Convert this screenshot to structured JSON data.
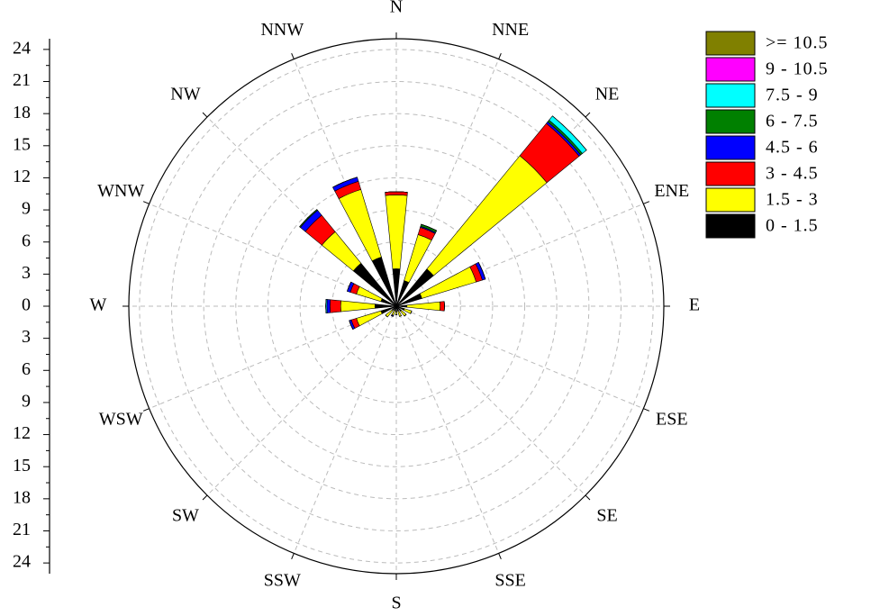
{
  "chart_data": {
    "type": "windrose",
    "categories": [
      "N",
      "NNE",
      "NE",
      "ENE",
      "E",
      "ESE",
      "SE",
      "SSE",
      "S",
      "SSW",
      "SW",
      "WSW",
      "W",
      "WNW",
      "NW",
      "NNW"
    ],
    "rlim": [
      0,
      25
    ],
    "rticks": [
      0,
      3,
      6,
      9,
      12,
      15,
      18,
      21,
      24
    ],
    "grid": true,
    "legend": "right",
    "series": [
      {
        "name": "0 - 1.5",
        "color": "#000000",
        "values": [
          3.5,
          2.5,
          4.5,
          2.5,
          1.0,
          0.8,
          0.6,
          0.5,
          0.5,
          0.4,
          0.5,
          1.5,
          2.0,
          1.5,
          5.2,
          4.8
        ]
      },
      {
        "name": "1.5 - 3",
        "color": "#ffff00",
        "values": [
          6.9,
          4.5,
          13.7,
          5.3,
          3.1,
          0.7,
          0.6,
          0.5,
          0.3,
          0.5,
          0.8,
          2.4,
          3.2,
          2.4,
          3.8,
          6.6
        ]
      },
      {
        "name": "3 - 4.5",
        "color": "#ff0000",
        "values": [
          0.3,
          0.7,
          3.9,
          0.6,
          0.4,
          0,
          0,
          0,
          0,
          0,
          0,
          0.5,
          1.0,
          0.6,
          2.0,
          0.8
        ]
      },
      {
        "name": "4.5 - 6",
        "color": "#0000ff",
        "values": [
          0,
          0.1,
          0.2,
          0.3,
          0,
          0,
          0,
          0,
          0,
          0.1,
          0,
          0.2,
          0.3,
          0.3,
          0.6,
          0.4
        ]
      },
      {
        "name": "6 - 7.5",
        "color": "#008000",
        "values": [
          0,
          0.2,
          0.2,
          0,
          0,
          0,
          0,
          0,
          0,
          0,
          0,
          0,
          0,
          0,
          0.1,
          0
        ]
      },
      {
        "name": "7.5 - 9",
        "color": "#00ffff",
        "values": [
          0,
          0,
          0.5,
          0,
          0,
          0,
          0,
          0,
          0,
          0,
          0,
          0,
          0.1,
          0,
          0,
          0
        ]
      },
      {
        "name": "9 - 10.5",
        "color": "#ff00ff",
        "values": [
          0,
          0,
          0,
          0,
          0,
          0,
          0,
          0,
          0,
          0,
          0,
          0,
          0,
          0,
          0,
          0
        ]
      },
      {
        "name": ">= 10.5",
        "color": "#808000",
        "values": [
          0,
          0,
          0,
          0,
          0,
          0,
          0,
          0,
          0,
          0,
          0,
          0,
          0,
          0,
          0,
          0
        ]
      }
    ]
  }
}
